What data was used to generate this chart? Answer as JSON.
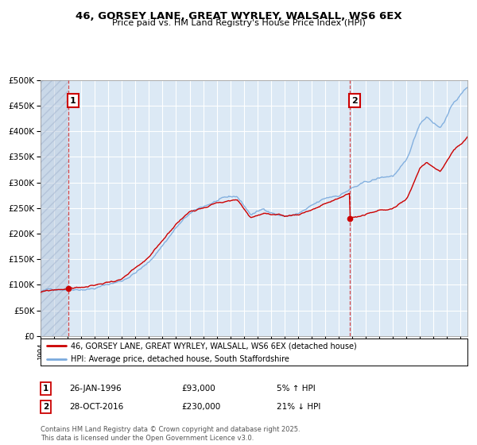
{
  "title1": "46, GORSEY LANE, GREAT WYRLEY, WALSALL, WS6 6EX",
  "title2": "Price paid vs. HM Land Registry's House Price Index (HPI)",
  "legend_line1": "46, GORSEY LANE, GREAT WYRLEY, WALSALL, WS6 6EX (detached house)",
  "legend_line2": "HPI: Average price, detached house, South Staffordshire",
  "annotation1_label": "1",
  "annotation1_date": "26-JAN-1996",
  "annotation1_price": "£93,000",
  "annotation1_pct": "5% ↑ HPI",
  "annotation2_label": "2",
  "annotation2_date": "28-OCT-2016",
  "annotation2_price": "£230,000",
  "annotation2_pct": "21% ↓ HPI",
  "footnote": "Contains HM Land Registry data © Crown copyright and database right 2025.\nThis data is licensed under the Open Government Licence v3.0.",
  "price_color": "#cc0000",
  "hpi_color": "#7aaadd",
  "annotation_box_color": "#cc0000",
  "background_color": "#dce9f5",
  "ylim_min": 0,
  "ylim_max": 500000,
  "sale1_year": 1996.07,
  "sale1_price": 93000,
  "sale2_year": 2016.83,
  "sale2_price": 230000
}
